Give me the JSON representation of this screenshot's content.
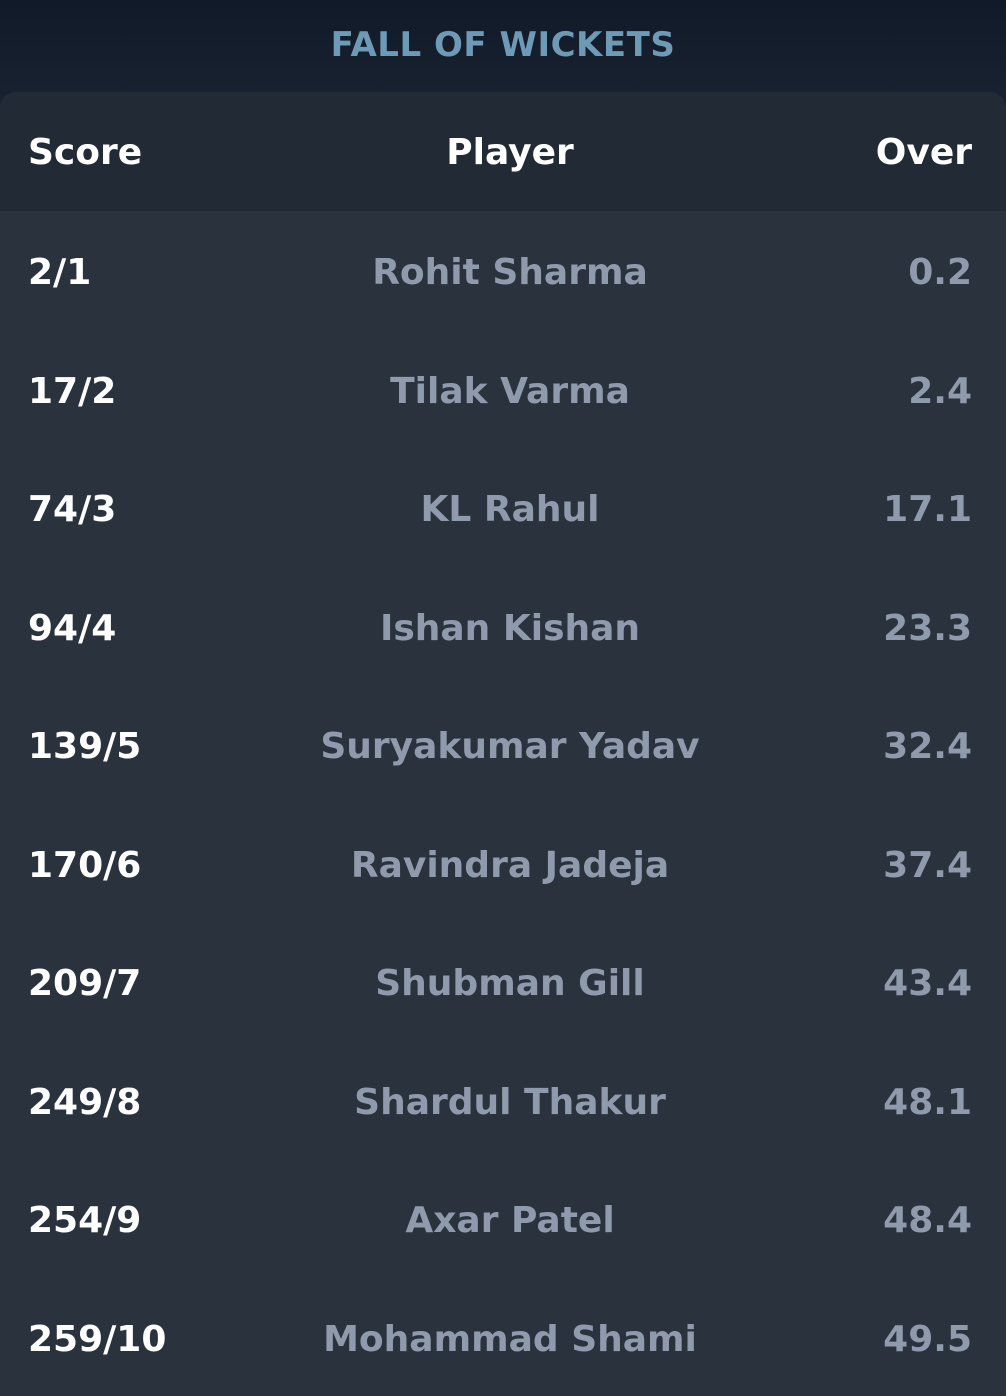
{
  "title": "FALL OF WICKETS",
  "columns": {
    "score": "Score",
    "player": "Player",
    "over": "Over"
  },
  "rows": [
    {
      "score": "2/1",
      "player": "Rohit Sharma",
      "over": "0.2"
    },
    {
      "score": "17/2",
      "player": "Tilak Varma",
      "over": "2.4"
    },
    {
      "score": "74/3",
      "player": "KL Rahul",
      "over": "17.1"
    },
    {
      "score": "94/4",
      "player": "Ishan Kishan",
      "over": "23.3"
    },
    {
      "score": "139/5",
      "player": "Suryakumar Yadav",
      "over": "32.4"
    },
    {
      "score": "170/6",
      "player": "Ravindra Jadeja",
      "over": "37.4"
    },
    {
      "score": "209/7",
      "player": "Shubman Gill",
      "over": "43.4"
    },
    {
      "score": "249/8",
      "player": "Shardul Thakur",
      "over": "48.1"
    },
    {
      "score": "254/9",
      "player": "Axar Patel",
      "over": "48.4"
    },
    {
      "score": "259/10",
      "player": "Mohammad Shami",
      "over": "49.5"
    }
  ],
  "colors": {
    "title": "#6f9ab6",
    "header_bg": "#222a36",
    "body_bg": "#2a323e",
    "score_text": "#ffffff",
    "muted_text": "#8f9aac"
  }
}
